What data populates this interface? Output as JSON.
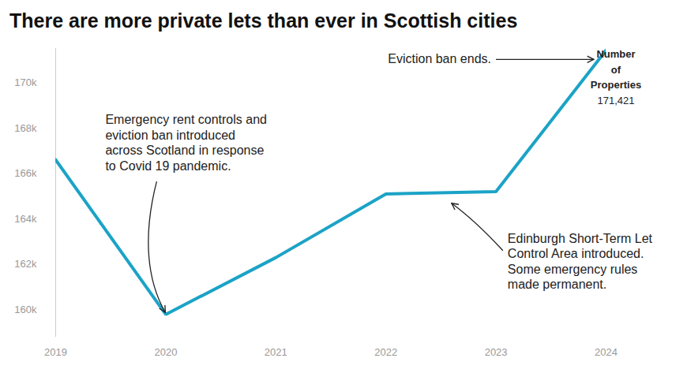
{
  "chart_data": {
    "type": "line",
    "title": "There are more private lets than ever in Scottish cities",
    "x": [
      2019,
      2020,
      2021,
      2022,
      2023,
      2024
    ],
    "xlim": [
      2019,
      2024
    ],
    "xticks": [
      2019,
      2020,
      2021,
      2022,
      2023,
      2024
    ],
    "ylim": [
      158800,
      171500
    ],
    "yticks": [
      {
        "value": 160000,
        "label": "160k"
      },
      {
        "value": 162000,
        "label": "162k"
      },
      {
        "value": 164000,
        "label": "164k"
      },
      {
        "value": 166000,
        "label": "166k"
      },
      {
        "value": 168000,
        "label": "168k"
      },
      {
        "value": 170000,
        "label": "170k"
      }
    ],
    "grid": false,
    "series": [
      {
        "name": "Number of Properties",
        "color": "#1ba3c6",
        "values": [
          166600,
          159800,
          162300,
          165100,
          165200,
          171421
        ],
        "value_labels": [
          null,
          null,
          null,
          null,
          null,
          "171,421"
        ]
      }
    ],
    "annotations": [
      {
        "text": "Emergency rent controls and\neviction ban introduced\nacross Scotland in response\nto Covid 19 pandemic.",
        "x": 2020
      },
      {
        "text": "Edinburgh Short-Term Let\nControl Area introduced.\nSome emergency rules\nmade permanent.",
        "x": 2022.6
      },
      {
        "text": "Eviction ban ends.",
        "x": 2024
      }
    ]
  }
}
